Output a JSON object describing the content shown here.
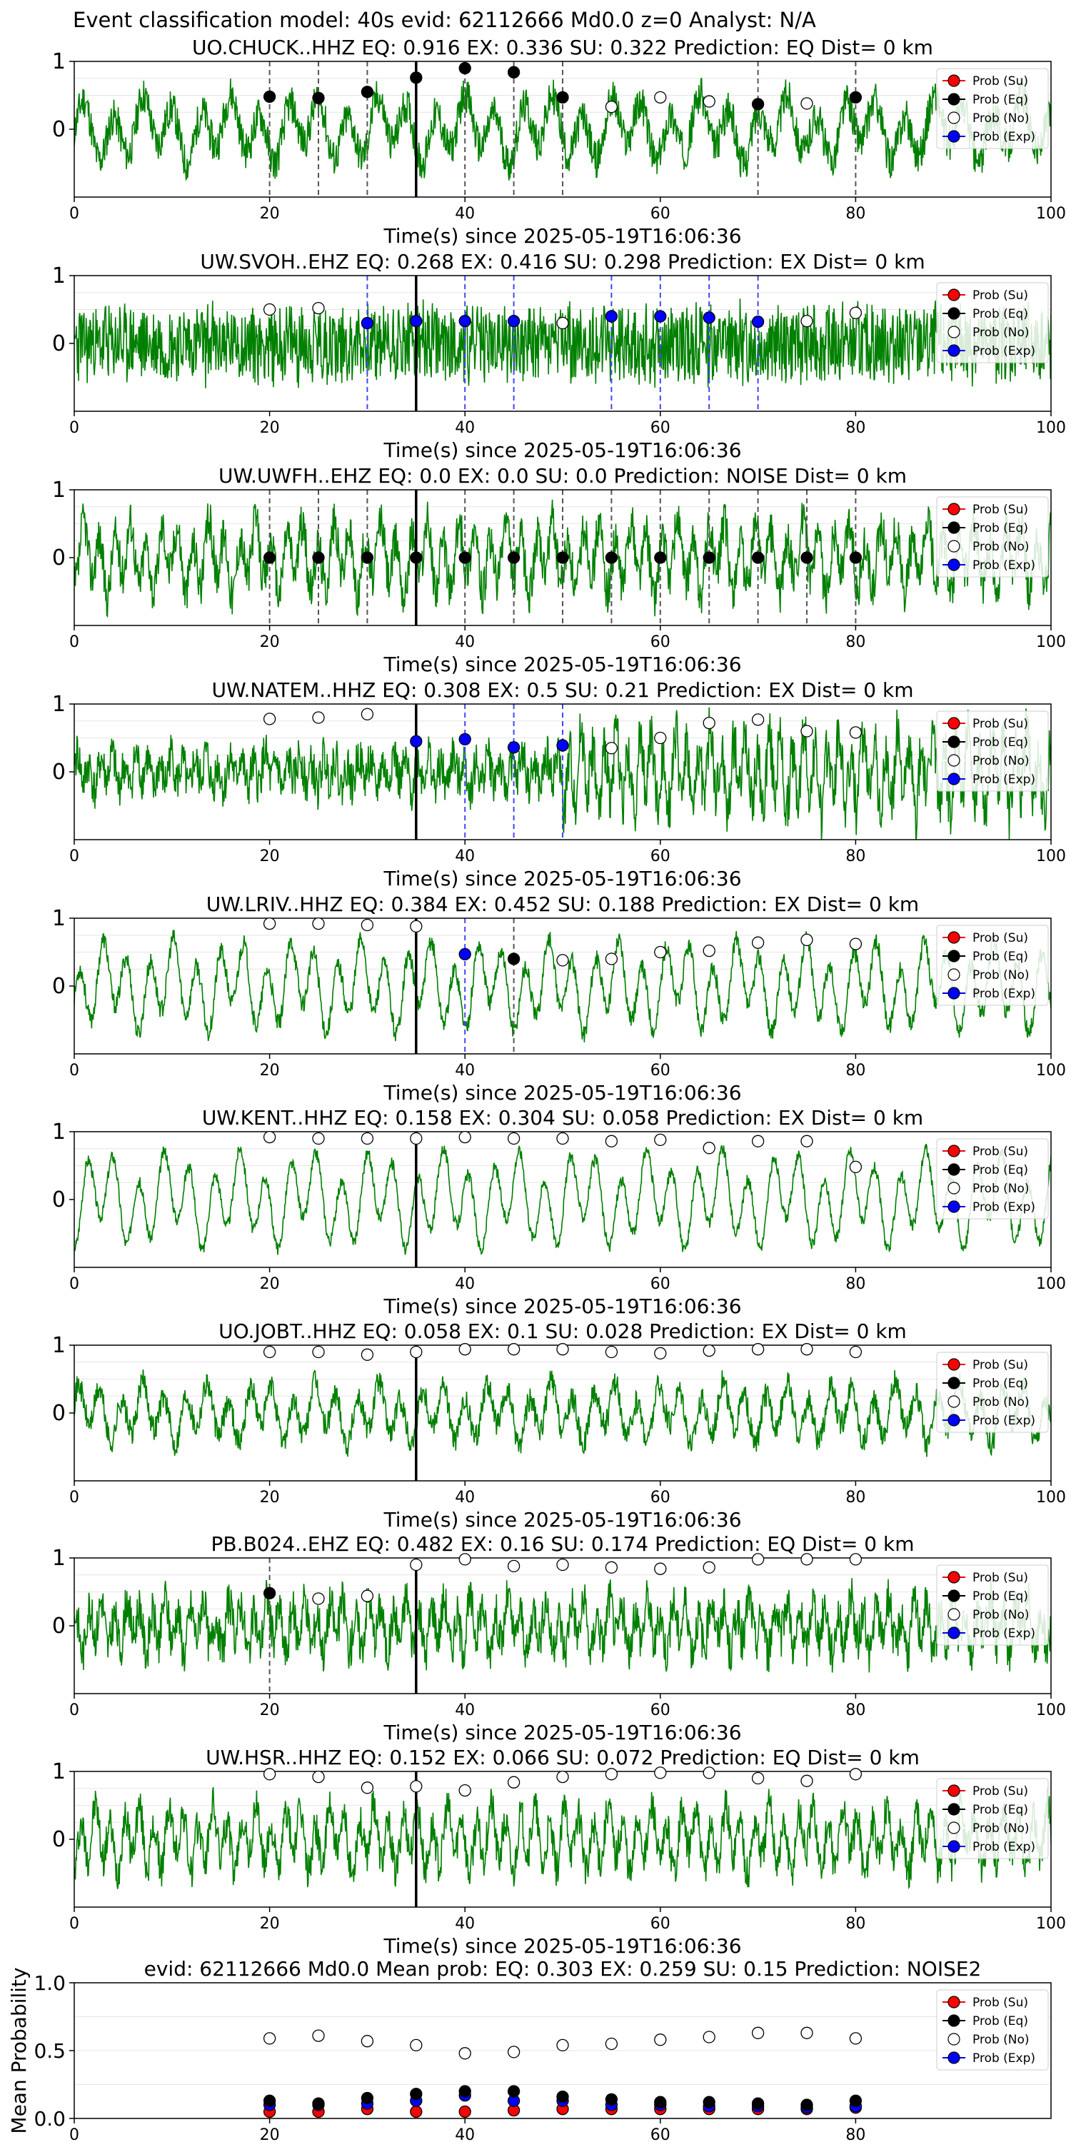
{
  "suptitle": "Event classification model: 40s evid: 62112666 Md0.0 z=0 Analyst: N/A",
  "legend_labels": [
    "Prob (Su)",
    "Prob (Eq)",
    "Prob (No)",
    "Prob (Exp)"
  ],
  "colors": {
    "waveform": "#008000",
    "su": "#ff0000",
    "eq": "#000000",
    "no": "#ffffff",
    "exp": "#0000ff",
    "eq_line": "#555555",
    "exp_line": "#4444ff"
  },
  "chart_data": [
    {
      "type": "line",
      "title": "UO.CHUCK..HHZ   EQ: 0.916  EX: 0.336  SU: 0.322   Prediction: EQ    Dist= 0 km",
      "xlabel": "Time(s) since 2025-05-19T16:06:36",
      "ylabel": "",
      "xlim": [
        0,
        100
      ],
      "ylim": [
        -1,
        1
      ],
      "xticks": [
        0,
        20,
        40,
        60,
        80,
        100
      ],
      "yticks": [
        "1",
        "0"
      ],
      "pick_time": 35,
      "eq_lines": [
        20,
        25,
        30,
        35,
        40,
        45,
        50,
        70,
        80
      ],
      "exp_lines": [],
      "wave": {
        "seed": 11,
        "amp": 0.55,
        "period": 3.0,
        "noise": 0.3
      },
      "points": {
        "x": [
          20,
          25,
          30,
          35,
          40,
          45,
          50,
          55,
          60,
          65,
          70,
          75,
          80
        ],
        "eq": [
          0.48,
          0.46,
          0.55,
          0.76,
          0.9,
          0.84,
          0.47,
          null,
          null,
          null,
          0.37,
          null,
          0.47
        ],
        "no": [
          null,
          null,
          null,
          null,
          null,
          null,
          null,
          0.33,
          0.47,
          0.41,
          null,
          0.38,
          null
        ],
        "su": [],
        "exp": []
      }
    },
    {
      "type": "line",
      "title": "UW.SVOH..EHZ   EQ: 0.268  EX: 0.416  SU: 0.298   Prediction: EX    Dist= 0 km",
      "xlabel": "Time(s) since 2025-05-19T16:06:36",
      "ylabel": "",
      "xlim": [
        0,
        100
      ],
      "ylim": [
        -1,
        1
      ],
      "xticks": [
        0,
        20,
        40,
        60,
        80,
        100
      ],
      "yticks": [
        "1",
        "0"
      ],
      "pick_time": 35,
      "eq_lines": [],
      "exp_lines": [
        30,
        40,
        45,
        55,
        60,
        65,
        70
      ],
      "wave": {
        "seed": 23,
        "amp": 0.15,
        "period": 0.5,
        "noise": 0.6
      },
      "points": {
        "x": [
          20,
          25,
          30,
          35,
          40,
          45,
          50,
          55,
          60,
          65,
          70,
          75,
          80
        ],
        "exp": [
          null,
          null,
          0.3,
          0.33,
          0.33,
          0.33,
          null,
          0.4,
          0.4,
          0.38,
          0.32,
          null,
          null
        ],
        "no": [
          0.5,
          0.52,
          null,
          null,
          null,
          null,
          0.3,
          null,
          null,
          null,
          null,
          0.33,
          0.45
        ],
        "su": [],
        "eq": []
      }
    },
    {
      "type": "line",
      "title": "UW.UWFH..EHZ   EQ: 0.0  EX: 0.0  SU: 0.0   Prediction: NOISE    Dist= 0 km",
      "xlabel": "Time(s) since 2025-05-19T16:06:36",
      "ylabel": "",
      "xlim": [
        0,
        100
      ],
      "ylim": [
        -1,
        1
      ],
      "xticks": [
        0,
        20,
        40,
        60,
        80,
        100
      ],
      "yticks": [
        "1",
        "0"
      ],
      "pick_time": 35,
      "eq_lines": [
        20,
        25,
        30,
        35,
        40,
        45,
        50,
        55,
        60,
        65,
        70,
        75,
        80
      ],
      "exp_lines": [],
      "wave": {
        "seed": 37,
        "amp": 0.6,
        "period": 1.6,
        "noise": 0.35
      },
      "points": {
        "x": [
          20,
          25,
          30,
          35,
          40,
          45,
          50,
          55,
          60,
          65,
          70,
          75,
          80
        ],
        "eq": [
          0,
          0,
          0,
          0,
          0,
          0,
          0,
          0,
          0,
          0,
          0,
          0,
          0
        ],
        "no": [],
        "su": [],
        "exp": []
      }
    },
    {
      "type": "line",
      "title": "UW.NATEM..HHZ   EQ: 0.308  EX: 0.5  SU: 0.21   Prediction: EX    Dist= 0 km",
      "xlabel": "Time(s) since 2025-05-19T16:06:36",
      "ylabel": "",
      "xlim": [
        0,
        100
      ],
      "ylim": [
        -1,
        1
      ],
      "xticks": [
        0,
        20,
        40,
        60,
        80,
        100
      ],
      "yticks": [
        "1",
        "0"
      ],
      "pick_time": 35,
      "eq_lines": [],
      "exp_lines": [
        40,
        45,
        50
      ],
      "wave": {
        "seed": 41,
        "amp": 0.3,
        "period": 1.2,
        "noise": 0.35,
        "burst": [
          50,
          100,
          2.2
        ]
      },
      "points": {
        "x": [
          20,
          25,
          30,
          35,
          40,
          45,
          50,
          55,
          60,
          65,
          70,
          75,
          80
        ],
        "exp": [
          null,
          null,
          null,
          0.45,
          0.48,
          0.36,
          0.39,
          null,
          null,
          null,
          null,
          null,
          null
        ],
        "no": [
          0.78,
          0.8,
          0.85,
          null,
          null,
          null,
          null,
          0.35,
          0.5,
          0.72,
          0.77,
          0.6,
          0.58
        ],
        "su": [],
        "eq": []
      }
    },
    {
      "type": "line",
      "title": "UW.LRIV..HHZ   EQ: 0.384  EX: 0.452  SU: 0.188   Prediction: EX    Dist= 0 km",
      "xlabel": "Time(s) since 2025-05-19T16:06:36",
      "ylabel": "",
      "xlim": [
        0,
        100
      ],
      "ylim": [
        -1,
        1
      ],
      "xticks": [
        0,
        20,
        40,
        60,
        80,
        100
      ],
      "yticks": [
        "1",
        "0"
      ],
      "pick_time": 35,
      "eq_lines": [
        45
      ],
      "exp_lines": [
        40
      ],
      "wave": {
        "seed": 53,
        "amp": 0.75,
        "period": 2.4,
        "noise": 0.15
      },
      "points": {
        "x": [
          20,
          25,
          30,
          35,
          40,
          45,
          50,
          55,
          60,
          65,
          70,
          75,
          80
        ],
        "exp": [
          null,
          null,
          null,
          null,
          0.47,
          null,
          null,
          null,
          null,
          null,
          null,
          null,
          null
        ],
        "eq": [
          null,
          null,
          null,
          null,
          null,
          0.4,
          null,
          null,
          null,
          null,
          null,
          null,
          null
        ],
        "no": [
          0.92,
          0.92,
          0.9,
          0.88,
          null,
          null,
          0.38,
          0.4,
          0.5,
          0.52,
          0.64,
          0.68,
          0.62
        ],
        "su": []
      }
    },
    {
      "type": "line",
      "title": "UW.KENT..HHZ   EQ: 0.158  EX: 0.304  SU: 0.058   Prediction: EX    Dist= 0 km",
      "xlabel": "Time(s) since 2025-05-19T16:06:36",
      "ylabel": "",
      "xlim": [
        0,
        100
      ],
      "ylim": [
        -1,
        1
      ],
      "xticks": [
        0,
        20,
        40,
        60,
        80,
        100
      ],
      "yticks": [
        "1",
        "0"
      ],
      "pick_time": 35,
      "eq_lines": [],
      "exp_lines": [],
      "wave": {
        "seed": 67,
        "amp": 0.8,
        "period": 2.6,
        "noise": 0.1
      },
      "points": {
        "x": [
          20,
          25,
          30,
          35,
          40,
          45,
          50,
          55,
          60,
          65,
          70,
          75,
          80
        ],
        "no": [
          0.92,
          0.9,
          0.9,
          0.9,
          0.92,
          0.9,
          0.9,
          0.86,
          0.88,
          0.76,
          0.86,
          0.86,
          0.48
        ],
        "eq": [],
        "su": [],
        "exp": []
      }
    },
    {
      "type": "line",
      "title": "UO.JOBT..HHZ   EQ: 0.058  EX: 0.1  SU: 0.028   Prediction: EX    Dist= 0 km",
      "xlabel": "Time(s) since 2025-05-19T16:06:36",
      "ylabel": "",
      "xlim": [
        0,
        100
      ],
      "ylim": [
        -1,
        1
      ],
      "xticks": [
        0,
        20,
        40,
        60,
        80,
        100
      ],
      "yticks": [
        "1",
        "0"
      ],
      "pick_time": 35,
      "eq_lines": [],
      "exp_lines": [],
      "wave": {
        "seed": 71,
        "amp": 0.5,
        "period": 2.2,
        "noise": 0.2
      },
      "points": {
        "x": [
          20,
          25,
          30,
          35,
          40,
          45,
          50,
          55,
          60,
          65,
          70,
          75,
          80
        ],
        "no": [
          0.9,
          0.9,
          0.86,
          0.9,
          0.94,
          0.94,
          0.94,
          0.9,
          0.88,
          0.92,
          0.94,
          0.94,
          0.9
        ],
        "eq": [],
        "su": [],
        "exp": []
      }
    },
    {
      "type": "line",
      "title": "PB.B024..EHZ   EQ: 0.482  EX: 0.16  SU: 0.174   Prediction: EQ    Dist= 0 km",
      "xlabel": "Time(s) since 2025-05-19T16:06:36",
      "ylabel": "",
      "xlim": [
        0,
        100
      ],
      "ylim": [
        -1,
        1
      ],
      "xticks": [
        0,
        20,
        40,
        60,
        80,
        100
      ],
      "yticks": [
        "1",
        "0"
      ],
      "pick_time": 35,
      "eq_lines": [
        20
      ],
      "exp_lines": [],
      "wave": {
        "seed": 83,
        "amp": 0.45,
        "period": 1.3,
        "noise": 0.35
      },
      "points": {
        "x": [
          20,
          25,
          30,
          35,
          40,
          45,
          50,
          55,
          60,
          65,
          70,
          75,
          80
        ],
        "eq": [
          0.48,
          null,
          null,
          null,
          null,
          null,
          null,
          null,
          null,
          null,
          null,
          null,
          null
        ],
        "no": [
          null,
          0.4,
          0.44,
          0.9,
          0.98,
          0.88,
          0.9,
          0.86,
          0.84,
          0.86,
          0.98,
          0.98,
          0.98
        ],
        "su": [],
        "exp": []
      }
    },
    {
      "type": "line",
      "title": "UW.HSR..HHZ   EQ: 0.152  EX: 0.066  SU: 0.072   Prediction: EQ    Dist= 0 km",
      "xlabel": "Time(s) since 2025-05-19T16:06:36",
      "ylabel": "",
      "xlim": [
        0,
        100
      ],
      "ylim": [
        -1,
        1
      ],
      "xticks": [
        0,
        20,
        40,
        60,
        80,
        100
      ],
      "yticks": [
        "1",
        "0"
      ],
      "pick_time": 35,
      "eq_lines": [],
      "exp_lines": [],
      "wave": {
        "seed": 97,
        "amp": 0.55,
        "period": 1.5,
        "noise": 0.3
      },
      "points": {
        "x": [
          20,
          25,
          30,
          35,
          40,
          45,
          50,
          55,
          60,
          65,
          70,
          75,
          80
        ],
        "no": [
          0.96,
          0.92,
          0.76,
          0.78,
          0.72,
          0.84,
          0.92,
          0.96,
          0.98,
          0.98,
          0.9,
          0.86,
          0.96
        ],
        "eq": [],
        "su": [],
        "exp": []
      }
    },
    {
      "type": "scatter",
      "title": "evid: 62112666  Md0.0   Mean prob:   EQ: 0.303  EX: 0.259  SU: 0.15   Prediction: NOISE2",
      "xlabel": "",
      "ylabel": "Mean Probability",
      "xlim": [
        0,
        100
      ],
      "ylim": [
        0,
        1
      ],
      "xticks": [
        0,
        20,
        40,
        60,
        80
      ],
      "yticks": [
        "1.0",
        "0.5",
        "0.0"
      ],
      "pick_time": null,
      "eq_lines": [],
      "exp_lines": [],
      "points": {
        "x": [
          20,
          25,
          30,
          35,
          40,
          45,
          50,
          55,
          60,
          65,
          70,
          75,
          80
        ],
        "no": [
          0.59,
          0.61,
          0.57,
          0.54,
          0.48,
          0.49,
          0.54,
          0.55,
          0.58,
          0.6,
          0.63,
          0.63,
          0.59
        ],
        "eq": [
          0.13,
          0.11,
          0.15,
          0.18,
          0.2,
          0.2,
          0.16,
          0.14,
          0.12,
          0.12,
          0.11,
          0.1,
          0.13
        ],
        "exp": [
          0.1,
          0.1,
          0.11,
          0.13,
          0.17,
          0.13,
          0.13,
          0.1,
          0.1,
          0.09,
          0.09,
          0.08,
          0.09
        ],
        "su": [
          0.05,
          0.05,
          0.07,
          0.05,
          0.05,
          0.06,
          0.07,
          0.07,
          0.07,
          0.07,
          0.07,
          0.07,
          0.08
        ]
      }
    }
  ]
}
